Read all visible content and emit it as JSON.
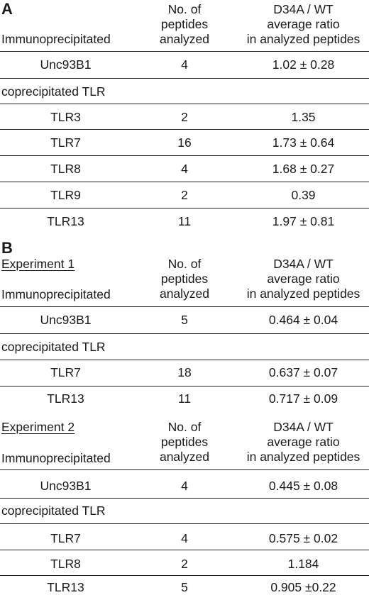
{
  "panelA": {
    "letter": "A",
    "header": {
      "row_label": "Immunoprecipitated",
      "col2": [
        "No. of",
        "peptides",
        "analyzed"
      ],
      "col3": [
        "D34A / WT",
        "average ratio",
        "in analyzed peptides"
      ]
    },
    "rows": [
      {
        "label": "Unc93B1",
        "n": "4",
        "ratio": "1.02 ± 0.28"
      },
      {
        "label": "coprecipitated TLR"
      },
      {
        "label": "TLR3",
        "n": "2",
        "ratio": "1.35"
      },
      {
        "label": "TLR7",
        "n": "16",
        "ratio": "1.73 ± 0.64"
      },
      {
        "label": "TLR8",
        "n": "4",
        "ratio": "1.68 ± 0.27"
      },
      {
        "label": "TLR9",
        "n": "2",
        "ratio": "0.39"
      },
      {
        "label": "TLR13",
        "n": "11",
        "ratio": "1.97 ± 0.81"
      }
    ]
  },
  "panelB": {
    "letter": "B",
    "experiment1": {
      "title": "Experiment 1",
      "header": {
        "row_label": "Immunoprecipitated",
        "col2": [
          "No. of",
          "peptides",
          "analyzed"
        ],
        "col3": [
          "D34A / WT",
          "average ratio",
          "in analyzed peptides"
        ]
      },
      "rows": [
        {
          "label": "Unc93B1",
          "n": "5",
          "ratio": "0.464 ± 0.04"
        },
        {
          "label": "coprecipitated TLR"
        },
        {
          "label": "TLR7",
          "n": "18",
          "ratio": "0.637 ± 0.07"
        },
        {
          "label": "TLR13",
          "n": "11",
          "ratio": "0.717 ± 0.09"
        }
      ]
    },
    "experiment2": {
      "title": "Experiment 2",
      "header": {
        "row_label": "Immunoprecipitated",
        "col2": [
          "No. of",
          "peptides",
          "analyzed"
        ],
        "col3": [
          "D34A / WT",
          "average ratio",
          "in analyzed peptides"
        ]
      },
      "rows": [
        {
          "label": "Unc93B1",
          "n": "4",
          "ratio": "0.445 ± 0.08"
        },
        {
          "label": "coprecipitated TLR"
        },
        {
          "label": "TLR7",
          "n": "4",
          "ratio": "0.575 ± 0.02"
        },
        {
          "label": "TLR8",
          "n": "2",
          "ratio": "1.184"
        },
        {
          "label": "TLR13",
          "n": "5",
          "ratio": "0.905 ±0.22"
        }
      ]
    }
  }
}
